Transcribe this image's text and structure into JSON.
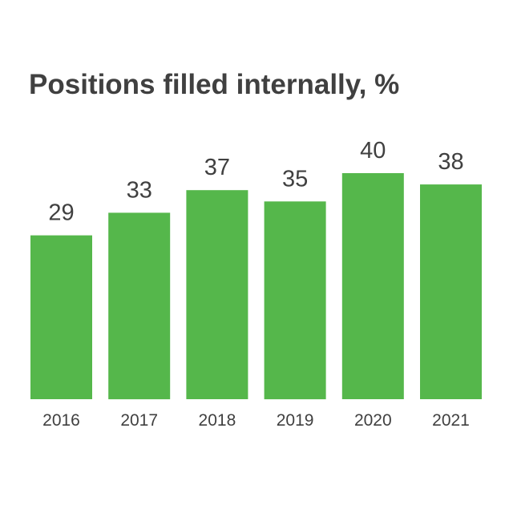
{
  "chart_data": {
    "type": "bar",
    "title": "Positions filled internally, %",
    "categories": [
      "2016",
      "2017",
      "2018",
      "2019",
      "2020",
      "2021"
    ],
    "values": [
      29,
      33,
      37,
      35,
      40,
      38
    ],
    "data_labels": [
      "29",
      "33",
      "37",
      "35",
      "40",
      "38"
    ],
    "xlabel": "",
    "ylabel": "",
    "ylim": [
      0,
      40
    ],
    "grid": false,
    "legend": "none",
    "bar_color": "#55b74b",
    "text_color": "#404040"
  }
}
